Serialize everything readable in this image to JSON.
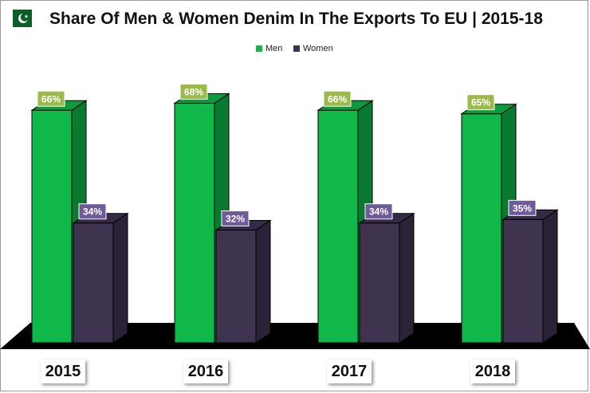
{
  "header": {
    "flag_icon": "pakistan-flag-icon",
    "title": "Share Of Men & Women Denim In The Exports To EU | 2015-18"
  },
  "chart_data": {
    "type": "bar",
    "title": "Share Of Men & Women Denim In The Exports To EU | 2015-18",
    "categories": [
      "2015",
      "2016",
      "2017",
      "2018"
    ],
    "series": [
      {
        "name": "Men",
        "values": [
          66,
          68,
          66,
          65
        ],
        "labels": [
          "66%",
          "68%",
          "66%",
          "65%"
        ],
        "color": "#10b84a",
        "side_color": "#0a7a30",
        "top_color": "#0d9a3d",
        "label_bg": "#9cb94a"
      },
      {
        "name": "Women",
        "values": [
          34,
          32,
          34,
          35
        ],
        "labels": [
          "34%",
          "32%",
          "34%",
          "35%"
        ],
        "color": "#3f3450",
        "side_color": "#2a2236",
        "top_color": "#352b44",
        "label_bg": "#6f5a9a"
      }
    ],
    "ylim": [
      0,
      100
    ],
    "xlabel": "",
    "ylabel": "",
    "grid": false,
    "legend_position": "top-center",
    "floor_color": "#000000"
  }
}
